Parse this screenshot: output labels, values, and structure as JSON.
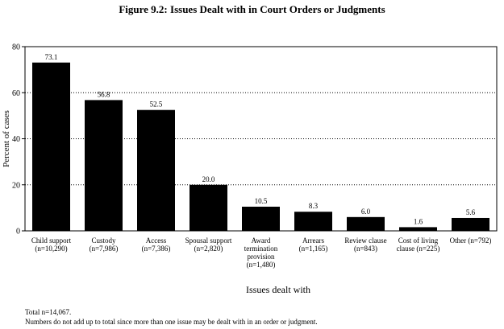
{
  "title": "Figure 9.2:  Issues Dealt with in Court Orders or Judgments",
  "notes": {
    "line1": "Total n=14,067.",
    "line2": "Numbers do not add up to total since more than one issue may be dealt with in an order or judgment."
  },
  "chart_data": {
    "type": "bar",
    "categories": [
      [
        "Child support",
        "(n=10,290)"
      ],
      [
        "Custody",
        "(n=7,986)"
      ],
      [
        "Access",
        "(n=7,386)"
      ],
      [
        "Spousal support",
        "(n=2,820)"
      ],
      [
        "Award",
        "termination",
        "provision",
        "(n=1,480)"
      ],
      [
        "Arrears",
        "(n=1,165)"
      ],
      [
        "Review clause",
        "(n=843)"
      ],
      [
        "Cost of living",
        "clause (n=225)"
      ],
      [
        "Other (n=792)"
      ]
    ],
    "values": [
      73.1,
      56.8,
      52.5,
      20.0,
      10.5,
      8.3,
      6.0,
      1.6,
      5.6
    ],
    "value_labels": [
      "73.1",
      "56.8",
      "52.5",
      "20.0",
      "10.5",
      "8.3",
      "6.0",
      "1.6",
      "5.6"
    ],
    "xlabel": "Issues dealt with",
    "ylabel": "Percent of cases",
    "ylim": [
      0,
      80
    ],
    "yticks": [
      0,
      20,
      40,
      60,
      80
    ],
    "grid": "dotted horizontal at 20, 40, 60",
    "bar_color": "#000000"
  }
}
